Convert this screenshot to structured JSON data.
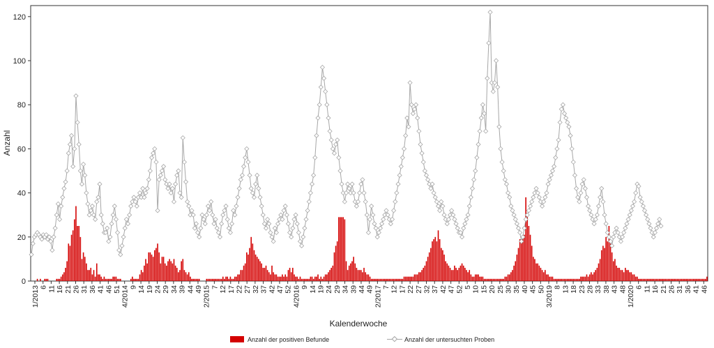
{
  "chart_data": {
    "type": "bar+line",
    "xlabel": "Kalenderwoche",
    "ylabel": "Anzahl",
    "ylim": [
      0,
      125
    ],
    "yticks": [
      0,
      20,
      40,
      60,
      80,
      100,
      120
    ],
    "grid": false,
    "legend_position": "bottom",
    "colors": {
      "bars": "#d40000",
      "line": "#a6a6a6",
      "marker_fill": "#ffffff"
    },
    "x_tick_labels": [
      "1/2013",
      "6",
      "11",
      "16",
      "21",
      "26",
      "31",
      "36",
      "41",
      "46",
      "51",
      "4/2014",
      "9",
      "14",
      "19",
      "24",
      "29",
      "34",
      "39",
      "44",
      "49",
      "2/2015",
      "7",
      "12",
      "17",
      "22",
      "27",
      "32",
      "37",
      "42",
      "47",
      "52",
      "4/2016",
      "9",
      "14",
      "19",
      "24",
      "29",
      "34",
      "39",
      "44",
      "49",
      "2/2017",
      "7",
      "12",
      "17",
      "22",
      "27",
      "32",
      "37",
      "42",
      "47",
      "52",
      "5",
      "10",
      "15",
      "20",
      "25",
      "30",
      "35",
      "40",
      "45",
      "50",
      "3/2019",
      "8",
      "13",
      "18",
      "23",
      "28",
      "33",
      "38",
      "43",
      "48",
      "1/2020",
      "6",
      "11",
      "16",
      "21",
      "26",
      "31",
      "36",
      "41",
      "46"
    ],
    "series": [
      {
        "name": "Anzahl der positiven Befunde",
        "kind": "bar",
        "values": [
          0,
          0,
          0,
          0,
          1,
          0,
          1,
          0,
          0,
          1,
          1,
          1,
          0,
          0,
          0,
          0,
          0,
          1,
          1,
          1,
          2,
          3,
          4,
          6,
          9,
          17,
          16,
          21,
          23,
          28,
          34,
          25,
          25,
          20,
          10,
          13,
          11,
          8,
          5,
          5,
          6,
          3,
          5,
          2,
          8,
          3,
          3,
          2,
          1,
          2,
          1,
          1,
          1,
          1,
          1,
          2,
          2,
          2,
          1,
          1,
          1,
          0,
          0,
          0,
          0,
          0,
          0,
          1,
          2,
          1,
          1,
          1,
          1,
          3,
          5,
          4,
          7,
          10,
          8,
          13,
          13,
          12,
          11,
          14,
          15,
          17,
          13,
          8,
          11,
          11,
          8,
          7,
          9,
          10,
          9,
          8,
          10,
          7,
          6,
          4,
          5,
          9,
          10,
          5,
          4,
          3,
          4,
          2,
          1,
          1,
          1,
          1,
          1,
          1,
          0,
          0,
          0,
          0,
          1,
          1,
          1,
          1,
          1,
          1,
          1,
          1,
          1,
          1,
          1,
          2,
          1,
          2,
          2,
          1,
          2,
          1,
          1,
          2,
          2,
          3,
          3,
          5,
          5,
          7,
          8,
          13,
          12,
          15,
          20,
          17,
          14,
          12,
          11,
          10,
          9,
          8,
          6,
          6,
          7,
          5,
          4,
          3,
          7,
          4,
          3,
          3,
          2,
          2,
          2,
          3,
          2,
          3,
          2,
          5,
          6,
          4,
          6,
          3,
          2,
          2,
          1,
          2,
          1,
          1,
          1,
          1,
          1,
          1,
          2,
          2,
          1,
          2,
          2,
          3,
          1,
          2,
          1,
          2,
          3,
          3,
          4,
          5,
          6,
          7,
          13,
          16,
          18,
          29,
          29,
          29,
          29,
          28,
          9,
          5,
          7,
          8,
          9,
          11,
          8,
          6,
          5,
          5,
          5,
          4,
          6,
          4,
          3,
          3,
          2,
          1,
          1,
          1,
          1,
          1,
          1,
          1,
          1,
          1,
          1,
          1,
          1,
          1,
          1,
          1,
          1,
          1,
          1,
          1,
          1,
          1,
          1,
          2,
          2,
          2,
          2,
          2,
          2,
          2,
          3,
          3,
          3,
          4,
          4,
          5,
          6,
          7,
          9,
          11,
          13,
          15,
          18,
          19,
          20,
          18,
          23,
          19,
          15,
          14,
          12,
          9,
          8,
          7,
          6,
          5,
          5,
          7,
          6,
          5,
          6,
          7,
          8,
          7,
          6,
          5,
          4,
          5,
          3,
          2,
          2,
          3,
          3,
          3,
          2,
          2,
          2,
          1,
          1,
          1,
          1,
          1,
          1,
          1,
          1,
          1,
          1,
          1,
          1,
          1,
          1,
          2,
          2,
          3,
          3,
          4,
          5,
          7,
          9,
          12,
          15,
          19,
          19,
          20,
          21,
          38,
          29,
          25,
          21,
          16,
          11,
          10,
          8,
          8,
          7,
          6,
          5,
          4,
          5,
          3,
          3,
          2,
          2,
          2,
          1,
          1,
          1,
          1,
          1,
          1,
          1,
          1,
          1,
          1,
          1,
          1,
          1,
          1,
          1,
          1,
          1,
          1,
          2,
          2,
          2,
          2,
          3,
          2,
          3,
          4,
          3,
          4,
          5,
          6,
          8,
          10,
          14,
          16,
          15,
          20,
          18,
          25,
          17,
          13,
          9,
          10,
          7,
          6,
          6,
          5,
          5,
          4,
          6,
          5,
          5,
          4,
          4,
          3,
          3,
          2,
          2,
          1,
          1,
          1,
          1,
          1,
          1,
          1,
          1,
          1,
          1,
          1,
          1,
          1,
          1,
          1,
          1,
          1,
          1,
          1,
          1,
          1,
          1,
          1,
          1,
          1,
          1,
          1,
          1,
          1,
          1,
          1,
          1,
          1,
          1,
          1,
          1,
          1,
          1,
          1,
          1,
          1,
          1,
          1,
          1,
          1,
          1,
          2
        ]
      },
      {
        "name": "Anzahl der untersuchten Proben",
        "kind": "line",
        "values": [
          12,
          17,
          20,
          21,
          22,
          21,
          20,
          19,
          21,
          20,
          21,
          19,
          20,
          18,
          14,
          20,
          24,
          30,
          35,
          28,
          34,
          38,
          42,
          45,
          50,
          58,
          62,
          66,
          52,
          60,
          84,
          72,
          62,
          50,
          44,
          53,
          48,
          40,
          35,
          30,
          32,
          34,
          30,
          28,
          36,
          38,
          44,
          30,
          26,
          22,
          22,
          24,
          18,
          20,
          26,
          30,
          34,
          28,
          22,
          14,
          12,
          16,
          20,
          24,
          28,
          26,
          30,
          34,
          36,
          38,
          36,
          34,
          38,
          40,
          38,
          42,
          38,
          40,
          42,
          46,
          50,
          56,
          58,
          60,
          54,
          32,
          46,
          48,
          50,
          52,
          46,
          44,
          42,
          44,
          40,
          42,
          36,
          44,
          48,
          50,
          40,
          38,
          65,
          54,
          45,
          36,
          34,
          30,
          32,
          30,
          24,
          26,
          22,
          20,
          24,
          30,
          28,
          26,
          30,
          34,
          32,
          36,
          30,
          26,
          28,
          24,
          22,
          20,
          26,
          30,
          32,
          34,
          28,
          24,
          22,
          26,
          32,
          30,
          34,
          38,
          42,
          46,
          48,
          52,
          56,
          60,
          54,
          48,
          42,
          40,
          38,
          44,
          48,
          42,
          38,
          34,
          30,
          26,
          24,
          28,
          26,
          22,
          20,
          18,
          24,
          22,
          26,
          28,
          30,
          28,
          32,
          34,
          30,
          26,
          22,
          20,
          24,
          28,
          30,
          26,
          22,
          18,
          16,
          20,
          24,
          28,
          32,
          36,
          40,
          44,
          48,
          56,
          66,
          74,
          80,
          88,
          97,
          92,
          86,
          80,
          74,
          68,
          64,
          60,
          58,
          62,
          64,
          56,
          50,
          44,
          40,
          36,
          40,
          44,
          42,
          40,
          44,
          40,
          36,
          34,
          36,
          40,
          44,
          46,
          40,
          36,
          30,
          22,
          28,
          34,
          30,
          26,
          24,
          20,
          22,
          24,
          26,
          28,
          30,
          32,
          30,
          28,
          26,
          28,
          32,
          36,
          40,
          44,
          48,
          52,
          56,
          60,
          66,
          74,
          70,
          90,
          80,
          76,
          78,
          80,
          74,
          68,
          62,
          58,
          54,
          50,
          48,
          46,
          44,
          42,
          44,
          40,
          38,
          36,
          34,
          32,
          36,
          34,
          30,
          28,
          26,
          28,
          30,
          32,
          30,
          28,
          26,
          24,
          22,
          22,
          20,
          24,
          26,
          28,
          30,
          34,
          38,
          42,
          46,
          50,
          56,
          62,
          68,
          74,
          80,
          76,
          68,
          92,
          108,
          122,
          90,
          86,
          90,
          100,
          88,
          70,
          60,
          54,
          50,
          46,
          44,
          40,
          38,
          34,
          32,
          30,
          28,
          26,
          24,
          22,
          18,
          20,
          24,
          28,
          30,
          32,
          34,
          36,
          38,
          40,
          42,
          40,
          38,
          36,
          34,
          36,
          38,
          40,
          44,
          46,
          48,
          50,
          52,
          56,
          60,
          64,
          72,
          78,
          80,
          76,
          74,
          72,
          70,
          66,
          60,
          54,
          48,
          42,
          38,
          36,
          40,
          44,
          46,
          42,
          38,
          34,
          32,
          30,
          28,
          26,
          28,
          30,
          34,
          38,
          42,
          36,
          30,
          26,
          22,
          20,
          18,
          16,
          20,
          22,
          24,
          22,
          20,
          18,
          20,
          22,
          24,
          26,
          28,
          30,
          32,
          34,
          36,
          40,
          44,
          43,
          38,
          36,
          34,
          32,
          30,
          28,
          26,
          24,
          22,
          20,
          22,
          24,
          26,
          28,
          25
        ]
      }
    ]
  }
}
